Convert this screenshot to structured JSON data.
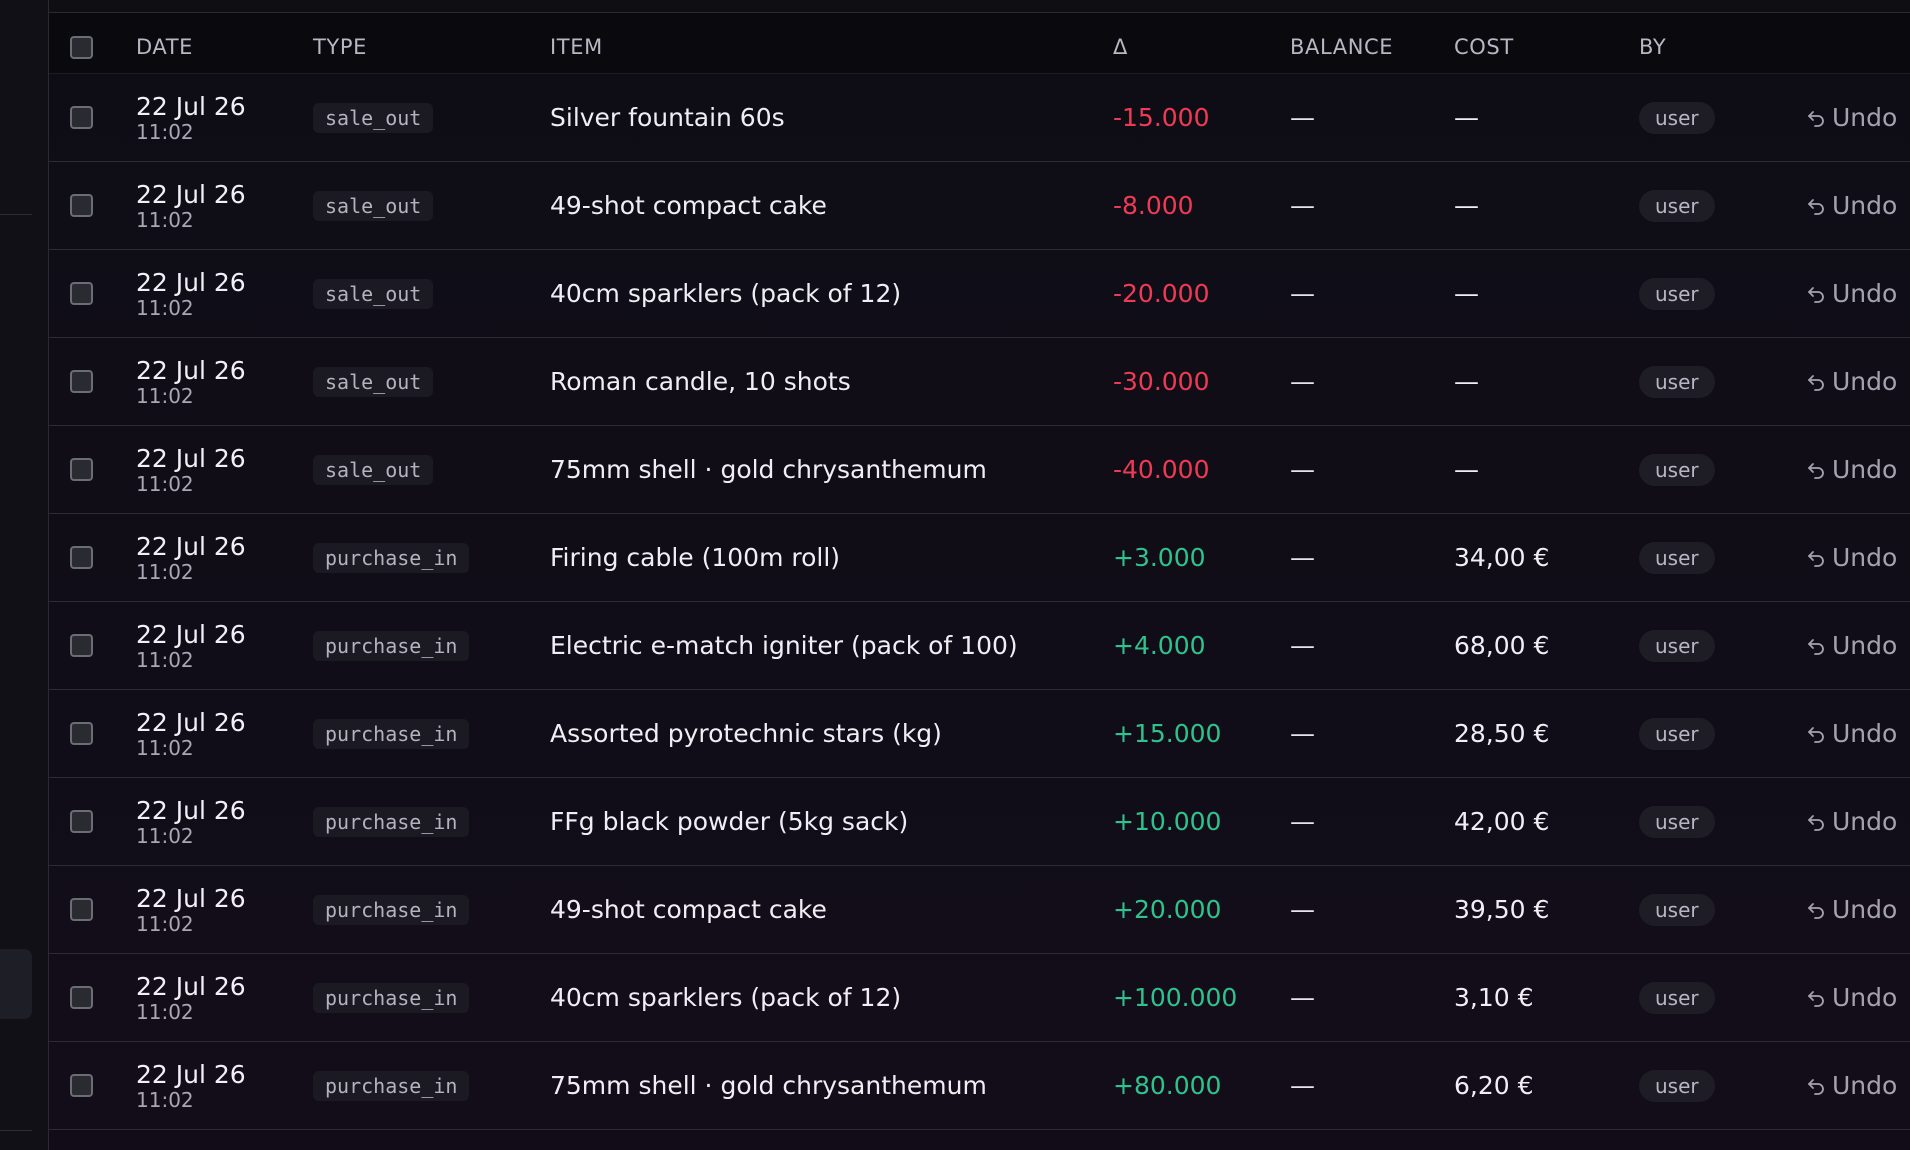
{
  "table": {
    "columns": {
      "date": "DATE",
      "type": "TYPE",
      "item": "ITEM",
      "delta": "Δ",
      "balance": "BALANCE",
      "cost": "COST",
      "by": "BY"
    },
    "undo_label": "Undo",
    "colors": {
      "negative": "#ee3b55",
      "positive": "#2fc28c"
    },
    "rows": [
      {
        "date": "22 Jul 26",
        "time": "11:02",
        "type": "sale_out",
        "item": "Silver fountain 60s",
        "delta": "-15.000",
        "balance": "—",
        "cost": "—",
        "by": "user"
      },
      {
        "date": "22 Jul 26",
        "time": "11:02",
        "type": "sale_out",
        "item": "49-shot compact cake",
        "delta": "-8.000",
        "balance": "—",
        "cost": "—",
        "by": "user"
      },
      {
        "date": "22 Jul 26",
        "time": "11:02",
        "type": "sale_out",
        "item": "40cm sparklers (pack of 12)",
        "delta": "-20.000",
        "balance": "—",
        "cost": "—",
        "by": "user"
      },
      {
        "date": "22 Jul 26",
        "time": "11:02",
        "type": "sale_out",
        "item": "Roman candle, 10 shots",
        "delta": "-30.000",
        "balance": "—",
        "cost": "—",
        "by": "user"
      },
      {
        "date": "22 Jul 26",
        "time": "11:02",
        "type": "sale_out",
        "item": "75mm shell · gold chrysanthemum",
        "delta": "-40.000",
        "balance": "—",
        "cost": "—",
        "by": "user"
      },
      {
        "date": "22 Jul 26",
        "time": "11:02",
        "type": "purchase_in",
        "item": "Firing cable (100m roll)",
        "delta": "+3.000",
        "balance": "—",
        "cost": "34,00 €",
        "by": "user"
      },
      {
        "date": "22 Jul 26",
        "time": "11:02",
        "type": "purchase_in",
        "item": "Electric e-match igniter (pack of 100)",
        "delta": "+4.000",
        "balance": "—",
        "cost": "68,00 €",
        "by": "user"
      },
      {
        "date": "22 Jul 26",
        "time": "11:02",
        "type": "purchase_in",
        "item": "Assorted pyrotechnic stars (kg)",
        "delta": "+15.000",
        "balance": "—",
        "cost": "28,50 €",
        "by": "user"
      },
      {
        "date": "22 Jul 26",
        "time": "11:02",
        "type": "purchase_in",
        "item": "FFg black powder (5kg sack)",
        "delta": "+10.000",
        "balance": "—",
        "cost": "42,00 €",
        "by": "user"
      },
      {
        "date": "22 Jul 26",
        "time": "11:02",
        "type": "purchase_in",
        "item": "49-shot compact cake",
        "delta": "+20.000",
        "balance": "—",
        "cost": "39,50 €",
        "by": "user"
      },
      {
        "date": "22 Jul 26",
        "time": "11:02",
        "type": "purchase_in",
        "item": "40cm sparklers (pack of 12)",
        "delta": "+100.000",
        "balance": "—",
        "cost": "3,10 €",
        "by": "user"
      },
      {
        "date": "22 Jul 26",
        "time": "11:02",
        "type": "purchase_in",
        "item": "75mm shell · gold chrysanthemum",
        "delta": "+80.000",
        "balance": "—",
        "cost": "6,20 €",
        "by": "user"
      }
    ]
  }
}
